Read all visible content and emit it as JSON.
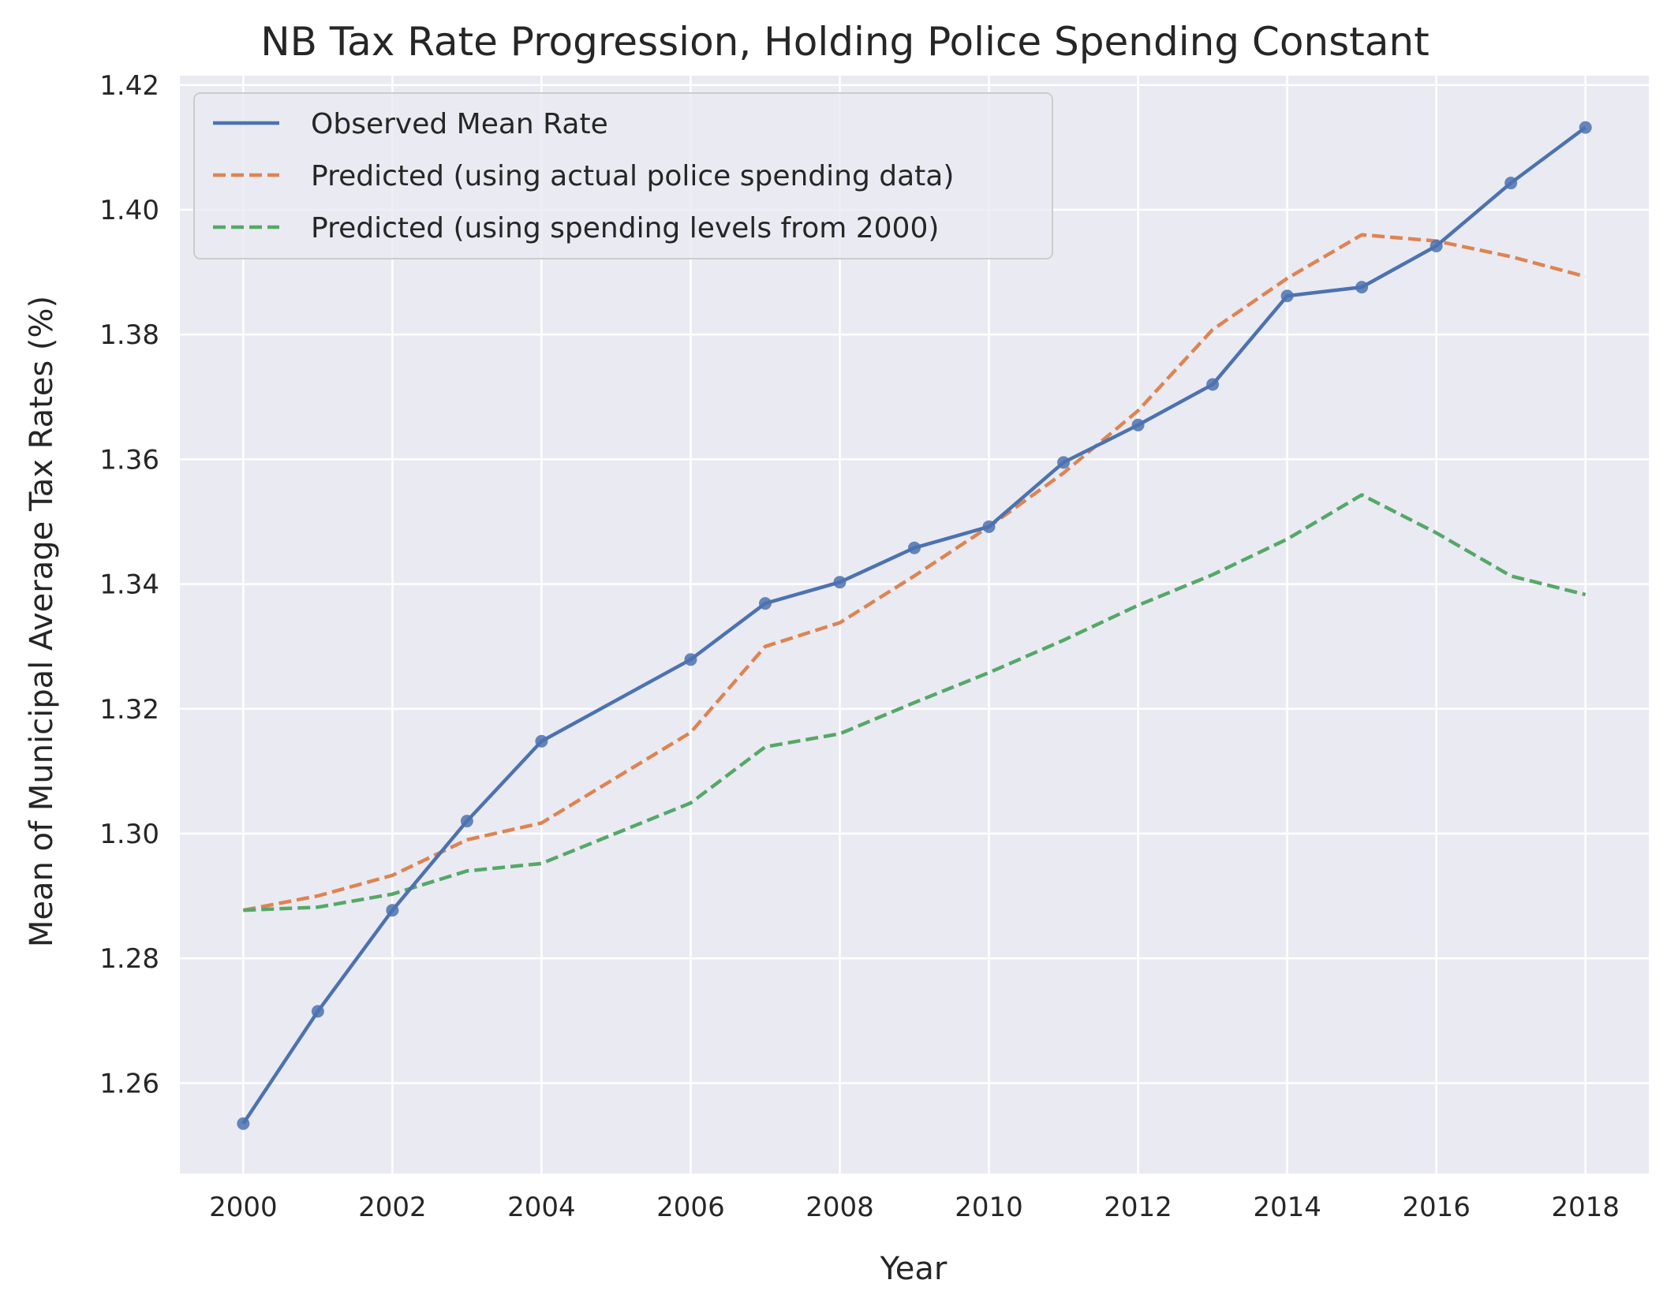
{
  "chart_data": {
    "type": "line",
    "title": "NB Tax Rate Progression, Holding Police Spending Constant",
    "xlabel": "Year",
    "ylabel": "Mean of Municipal Average Tax Rates  (%)",
    "xlim": [
      1999.15,
      2018.85
    ],
    "ylim": [
      1.2455,
      1.4215
    ],
    "xticks": [
      2000,
      2002,
      2004,
      2006,
      2008,
      2010,
      2012,
      2014,
      2016,
      2018
    ],
    "yticks": [
      1.26,
      1.28,
      1.3,
      1.32,
      1.34,
      1.36,
      1.38,
      1.4,
      1.42
    ],
    "ytick_labels": [
      "1.26",
      "1.28",
      "1.30",
      "1.32",
      "1.34",
      "1.36",
      "1.38",
      "1.40",
      "1.42"
    ],
    "grid": true,
    "legend_position": "top-left",
    "series": [
      {
        "name": "Observed Mean Rate",
        "color": "#4c72b0",
        "style": "solid",
        "markers": true,
        "points": [
          [
            2000,
            1.2535
          ],
          [
            2001,
            1.2715
          ],
          [
            2002,
            1.2877
          ],
          [
            2003,
            1.302
          ],
          [
            2004,
            1.3148
          ],
          [
            2006,
            1.3279
          ],
          [
            2007,
            1.3369
          ],
          [
            2008,
            1.3403
          ],
          [
            2009,
            1.3458
          ],
          [
            2010,
            1.3492
          ],
          [
            2011,
            1.3595
          ],
          [
            2012,
            1.3655
          ],
          [
            2013,
            1.372
          ],
          [
            2014,
            1.3862
          ],
          [
            2015,
            1.3876
          ],
          [
            2016,
            1.3942
          ],
          [
            2017,
            1.4043
          ],
          [
            2018,
            1.4132
          ]
        ]
      },
      {
        "name": "Predicted (using actual police spending data)",
        "color": "#dd8452",
        "style": "dashed",
        "markers": false,
        "points": [
          [
            2000,
            1.2877
          ],
          [
            2001,
            1.29
          ],
          [
            2002,
            1.2933
          ],
          [
            2003,
            1.299
          ],
          [
            2004,
            1.3017
          ],
          [
            2006,
            1.3162
          ],
          [
            2007,
            1.33
          ],
          [
            2008,
            1.3338
          ],
          [
            2009,
            1.3413
          ],
          [
            2010,
            1.3492
          ],
          [
            2011,
            1.3578
          ],
          [
            2012,
            1.3678
          ],
          [
            2013,
            1.3808
          ],
          [
            2014,
            1.389
          ],
          [
            2015,
            1.396
          ],
          [
            2016,
            1.395
          ],
          [
            2017,
            1.3925
          ],
          [
            2018,
            1.3893
          ]
        ]
      },
      {
        "name": "Predicted (using spending levels from 2000)",
        "color": "#55a868",
        "style": "dashed",
        "markers": false,
        "points": [
          [
            2000,
            1.2877
          ],
          [
            2001,
            1.2882
          ],
          [
            2002,
            1.2903
          ],
          [
            2003,
            1.294
          ],
          [
            2004,
            1.2952
          ],
          [
            2006,
            1.3049
          ],
          [
            2007,
            1.3139
          ],
          [
            2008,
            1.316
          ],
          [
            2009,
            1.321
          ],
          [
            2010,
            1.3258
          ],
          [
            2011,
            1.331
          ],
          [
            2012,
            1.3366
          ],
          [
            2013,
            1.3415
          ],
          [
            2014,
            1.3472
          ],
          [
            2015,
            1.3543
          ],
          [
            2016,
            1.3482
          ],
          [
            2017,
            1.3413
          ],
          [
            2018,
            1.3383
          ]
        ]
      }
    ]
  }
}
